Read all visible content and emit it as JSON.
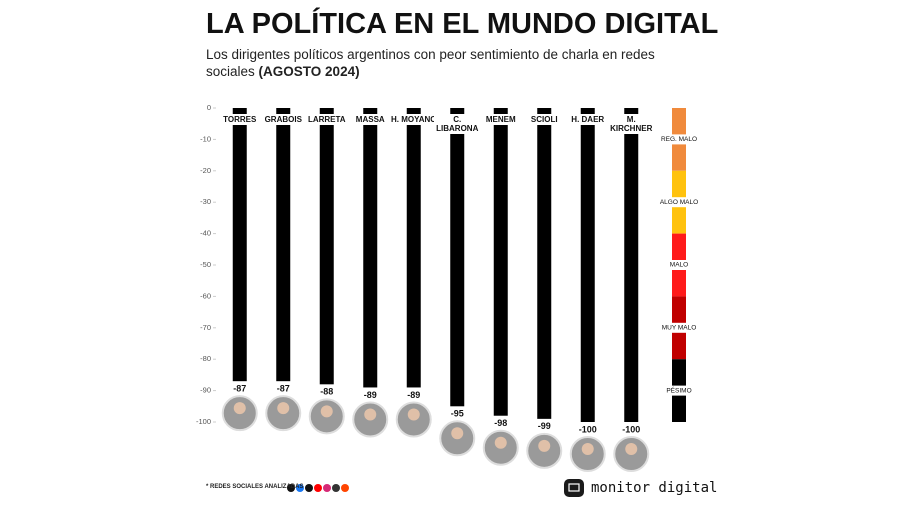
{
  "chart_data": {
    "type": "bar",
    "title": "LA POLÍTICA EN EL MUNDO DIGITAL",
    "subtitle": "Los dirigentes políticos argentinos con peor sentimiento de charla en redes sociales",
    "subtitle_date": "(AGOSTO 2024)",
    "categories": [
      "TORRES",
      "GRABOIS",
      "LARRETA",
      "MASSA",
      "H. MOYANO",
      "C. LIBARONA",
      "MENEM",
      "SCIOLI",
      "H. DAER",
      "M. KIRCHNER"
    ],
    "values": [
      -87,
      -87,
      -88,
      -89,
      -89,
      -95,
      -98,
      -99,
      -100,
      -100
    ],
    "color": "#000000",
    "ylim": [
      0,
      -100
    ],
    "yticks": [
      0,
      -10,
      -20,
      -30,
      -40,
      -50,
      -60,
      -70,
      -80,
      -90,
      -100
    ],
    "scale": [
      {
        "label": "REG. MALO",
        "color": "#f08a3c"
      },
      {
        "label": "ALGO MALO",
        "color": "#ffc20e"
      },
      {
        "label": "MALO",
        "color": "#ff1a1a"
      },
      {
        "label": "MUY MALO",
        "color": "#c00000"
      },
      {
        "label": "PÉSIMO",
        "color": "#000000"
      }
    ],
    "footnote": "* REDES SOCIALES ANALIZADAS",
    "brand": "monitor digital"
  }
}
